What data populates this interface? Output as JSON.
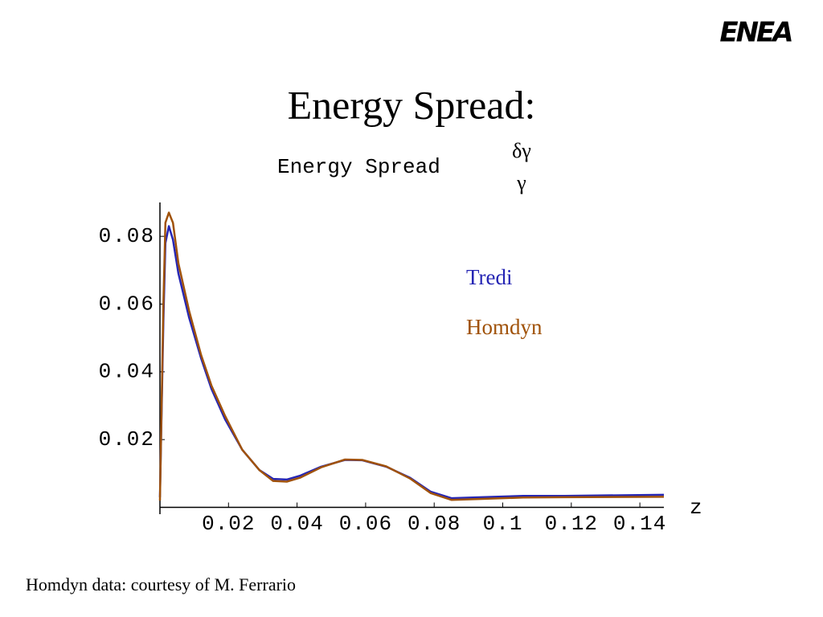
{
  "logo": "ENEA",
  "footer": "Homdyn data: courtesy of M. Ferrario",
  "chart_data": {
    "type": "line",
    "title": "Energy Spread:",
    "y_label": "Energy Spread",
    "y_label_fraction": {
      "numerator": "δγ",
      "denominator": "γ"
    },
    "x_label": "z",
    "x": [
      0,
      0.001,
      0.0016,
      0.0026,
      0.0038,
      0.0054,
      0.0085,
      0.012,
      0.015,
      0.019,
      0.024,
      0.029,
      0.033,
      0.037,
      0.041,
      0.047,
      0.054,
      0.059,
      0.066,
      0.073,
      0.079,
      0.085,
      0.094,
      0.106,
      0.118,
      0.147
    ],
    "series": [
      {
        "name": "Tredi",
        "color": "#2626b4",
        "values": [
          0.003,
          0.055,
          0.078,
          0.083,
          0.079,
          0.069,
          0.056,
          0.044,
          0.035,
          0.026,
          0.017,
          0.011,
          0.0084,
          0.0082,
          0.0094,
          0.012,
          0.014,
          0.0139,
          0.012,
          0.0087,
          0.0046,
          0.0027,
          0.003,
          0.0034,
          0.0034,
          0.0037
        ]
      },
      {
        "name": "Homdyn",
        "color": "#a0520a",
        "values": [
          0.002,
          0.06,
          0.084,
          0.087,
          0.084,
          0.072,
          0.058,
          0.045,
          0.036,
          0.027,
          0.017,
          0.011,
          0.0078,
          0.0076,
          0.0088,
          0.0118,
          0.0141,
          0.014,
          0.0121,
          0.0085,
          0.0042,
          0.0022,
          0.0025,
          0.0029,
          0.003,
          0.0031
        ]
      }
    ],
    "xlim": [
      0,
      0.147
    ],
    "ylim": [
      0,
      0.09
    ],
    "xticks": [
      0.02,
      0.04,
      0.06,
      0.08,
      0.1,
      0.12,
      0.14
    ],
    "yticks": [
      0.02,
      0.04,
      0.06,
      0.08
    ],
    "grid": false
  }
}
